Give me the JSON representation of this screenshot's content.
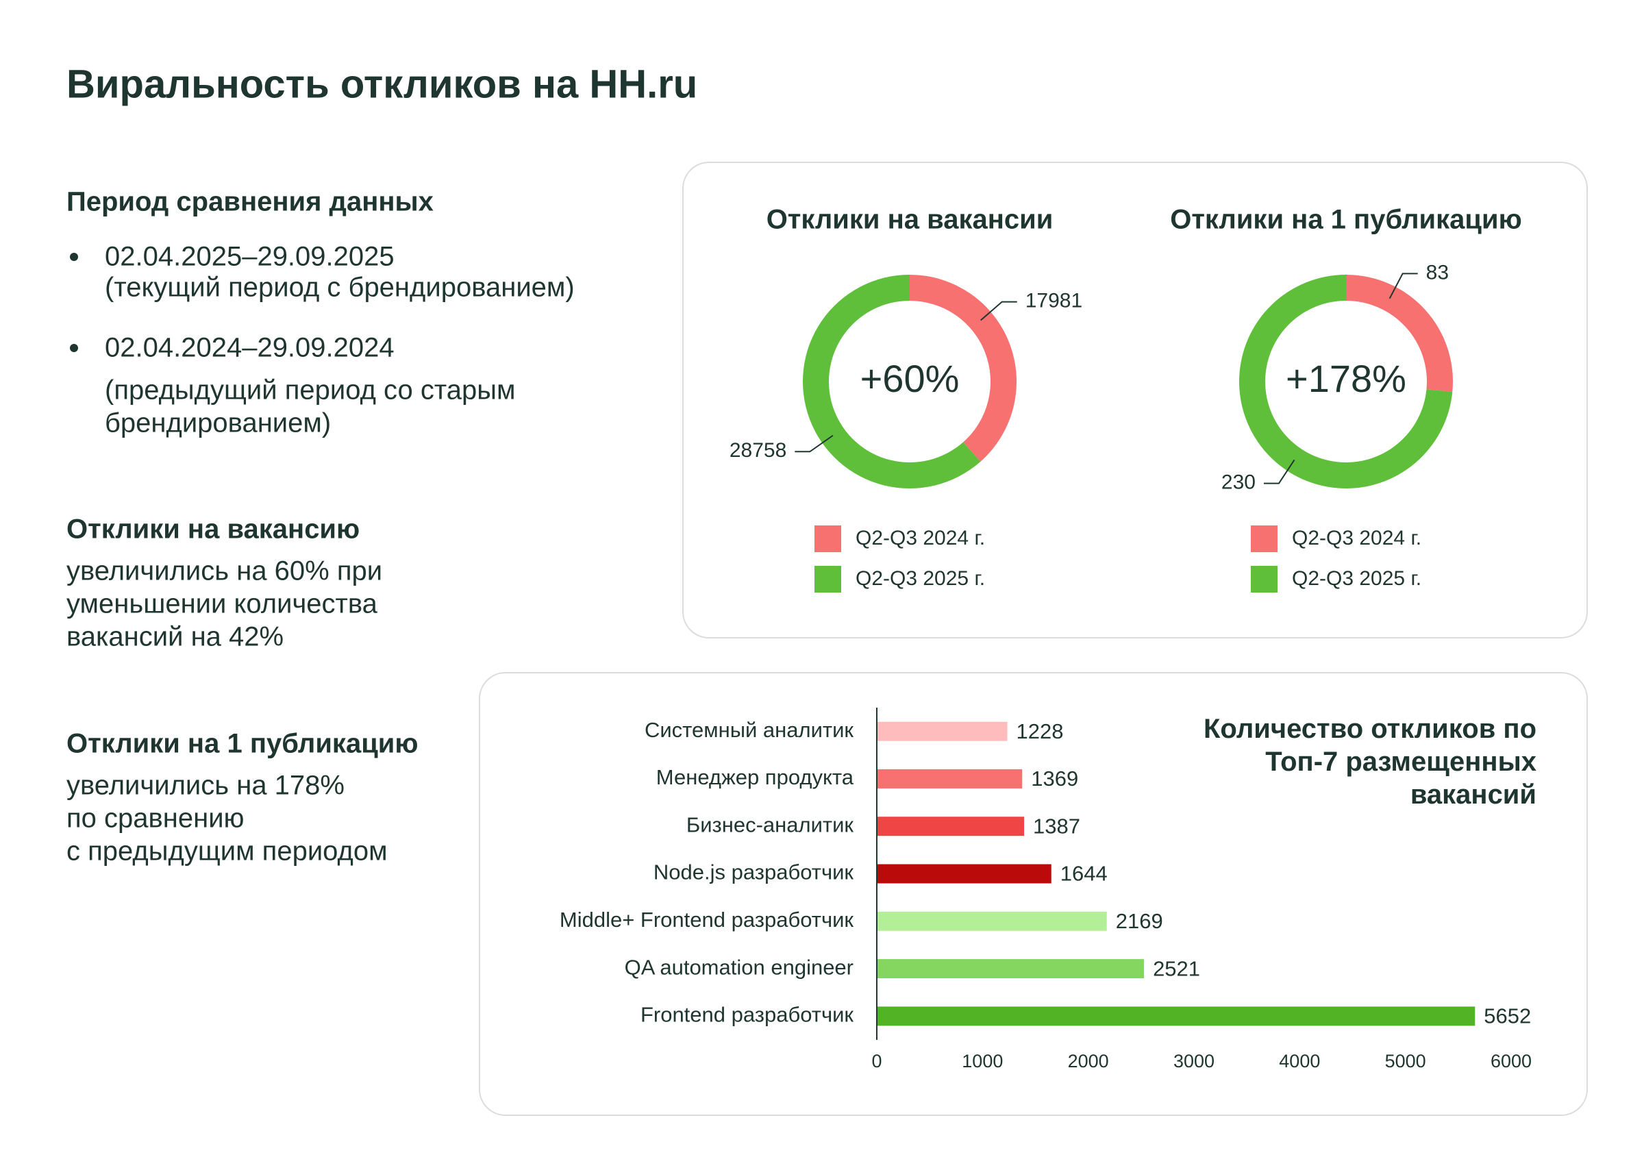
{
  "title": "Виральность откликов на HH.ru",
  "period": {
    "heading": "Период сравнения данных",
    "items": [
      {
        "dates": "02.04.2025–29.09.2025",
        "note_lines": [
          "(текущий период с брендированием)"
        ]
      },
      {
        "dates": "02.04.2024–29.09.2024",
        "note_lines": [
          "(предыдущий период со старым",
          "брендированием)"
        ]
      }
    ]
  },
  "notes": [
    {
      "heading": "Отклики на вакансию",
      "lines": [
        "увеличились на 60% при",
        "уменьшении количества",
        "вакансий на 42%"
      ]
    },
    {
      "heading": "Отклики на 1 публикацию",
      "lines": [
        "увеличились на 178%",
        "по сравнению",
        "с предыдущим периодом"
      ]
    }
  ],
  "chart_data": [
    {
      "type": "donut",
      "title": "Отклики на вакансии",
      "center_label": "+60%",
      "labels": [
        "Q2-Q3 2024 г.",
        "Q2-Q3 2025 г."
      ],
      "values": [
        17981,
        28758
      ],
      "colors": [
        "#f87171",
        "#5fbf3a"
      ]
    },
    {
      "type": "donut",
      "title": "Отклики на 1 публикацию",
      "center_label": "+178%",
      "labels": [
        "Q2-Q3 2024 г.",
        "Q2-Q3 2025 г."
      ],
      "values": [
        83,
        230
      ],
      "colors": [
        "#f87171",
        "#5fbf3a"
      ]
    },
    {
      "type": "bar",
      "orientation": "horizontal",
      "title": "Количество откликов по Топ-7 размещенных вакансий",
      "categories": [
        "Системный аналитик",
        "Менеджер продукта",
        "Бизнес-аналитик",
        "Node.js разработчик",
        "Middle+ Frontend разработчик",
        "QA automation engineer",
        "Frontend разработчик"
      ],
      "values": [
        1228,
        1369,
        1387,
        1644,
        2169,
        2521,
        5652
      ],
      "colors": [
        "#ffbcbc",
        "#f87171",
        "#f04545",
        "#bb0a0a",
        "#b3ef96",
        "#84d660",
        "#52b325"
      ],
      "xlim": [
        0,
        6000
      ],
      "xticks": [
        0,
        1000,
        2000,
        3000,
        4000,
        5000,
        6000
      ]
    }
  ]
}
